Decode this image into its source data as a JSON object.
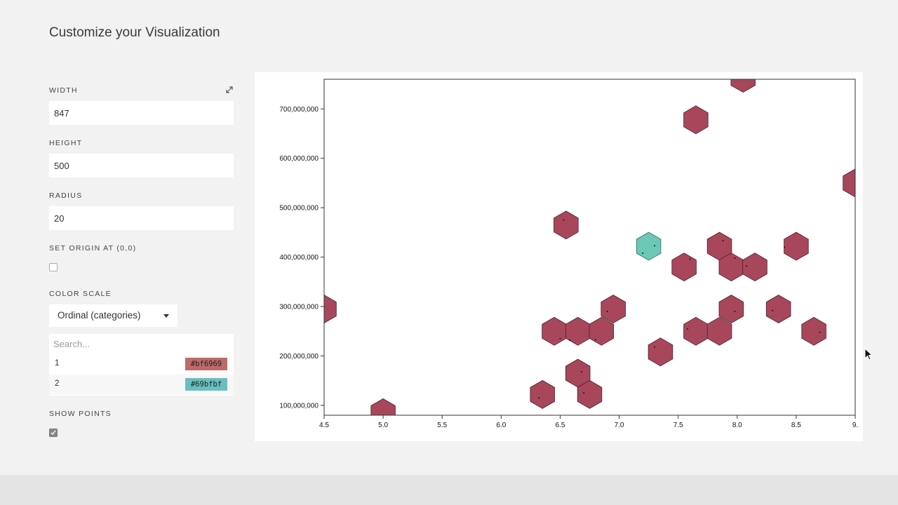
{
  "page": {
    "title": "Customize your Visualization"
  },
  "controls": {
    "width": {
      "label": "WIDTH",
      "value": "847"
    },
    "height": {
      "label": "HEIGHT",
      "value": "500"
    },
    "radius": {
      "label": "RADIUS",
      "value": "20"
    },
    "origin": {
      "label": "SET ORIGIN AT (0,0)",
      "checked": false
    },
    "color_scale": {
      "label": "COLOR SCALE",
      "selected": "Ordinal (categories)",
      "search_placeholder": "Search...",
      "entries": [
        {
          "label": "1",
          "color": "#bf6969"
        },
        {
          "label": "2",
          "color": "#69bfbf"
        }
      ]
    },
    "show_points": {
      "label": "SHOW POINTS",
      "checked": true
    }
  },
  "icons": {
    "expand": "expand-icon",
    "caret": "caret-down-icon",
    "check": "check-icon",
    "cursor": "mouse-cursor-icon"
  },
  "chart_data": {
    "type": "hexbin",
    "xlim": [
      4.5,
      9.0
    ],
    "ylim": [
      80000000,
      760000000
    ],
    "x_ticks": [
      "4.5",
      "5.0",
      "5.5",
      "6.0",
      "6.5",
      "7.0",
      "7.5",
      "8.0",
      "8.5",
      "9."
    ],
    "x_tick_values": [
      4.5,
      5.0,
      5.5,
      6.0,
      6.5,
      7.0,
      7.5,
      8.0,
      8.5,
      9.0
    ],
    "y_ticks": [
      "100,000,000",
      "200,000,000",
      "300,000,000",
      "400,000,000",
      "500,000,000",
      "600,000,000",
      "700,000,000"
    ],
    "y_tick_values": [
      100000000,
      200000000,
      300000000,
      400000000,
      500000000,
      600000000,
      700000000
    ],
    "bins": [
      {
        "x": 4.5,
        "y": 295000000,
        "category": "1"
      },
      {
        "x": 5.0,
        "y": 85000000,
        "category": "1"
      },
      {
        "x": 6.35,
        "y": 122000000,
        "category": "1"
      },
      {
        "x": 6.45,
        "y": 250000000,
        "category": "1"
      },
      {
        "x": 6.55,
        "y": 465000000,
        "category": "1"
      },
      {
        "x": 6.65,
        "y": 165000000,
        "category": "1"
      },
      {
        "x": 6.65,
        "y": 250000000,
        "category": "1"
      },
      {
        "x": 6.75,
        "y": 122000000,
        "category": "1"
      },
      {
        "x": 6.85,
        "y": 250000000,
        "category": "1"
      },
      {
        "x": 6.95,
        "y": 295000000,
        "category": "1"
      },
      {
        "x": 7.25,
        "y": 422000000,
        "category": "2"
      },
      {
        "x": 7.35,
        "y": 208000000,
        "category": "1"
      },
      {
        "x": 7.55,
        "y": 380000000,
        "category": "1"
      },
      {
        "x": 7.65,
        "y": 250000000,
        "category": "1"
      },
      {
        "x": 7.65,
        "y": 678000000,
        "category": "1"
      },
      {
        "x": 7.85,
        "y": 250000000,
        "category": "1"
      },
      {
        "x": 7.85,
        "y": 422000000,
        "category": "1"
      },
      {
        "x": 7.95,
        "y": 295000000,
        "category": "1"
      },
      {
        "x": 7.95,
        "y": 380000000,
        "category": "1"
      },
      {
        "x": 8.05,
        "y": 762000000,
        "category": "1"
      },
      {
        "x": 8.15,
        "y": 380000000,
        "category": "1"
      },
      {
        "x": 8.35,
        "y": 295000000,
        "category": "1"
      },
      {
        "x": 8.5,
        "y": 422000000,
        "category": "1"
      },
      {
        "x": 8.65,
        "y": 250000000,
        "category": "1"
      },
      {
        "x": 9.0,
        "y": 550000000,
        "category": "1"
      }
    ],
    "points": [
      [
        6.32,
        115000000
      ],
      [
        6.5,
        235000000
      ],
      [
        6.53,
        475000000
      ],
      [
        6.58,
        232000000
      ],
      [
        6.68,
        168000000
      ],
      [
        6.7,
        125000000
      ],
      [
        6.8,
        233000000
      ],
      [
        6.9,
        290000000
      ],
      [
        7.2,
        408000000
      ],
      [
        7.3,
        423000000
      ],
      [
        7.3,
        218000000
      ],
      [
        7.58,
        255000000
      ],
      [
        7.6,
        396000000
      ],
      [
        7.88,
        433000000
      ],
      [
        7.98,
        398000000
      ],
      [
        7.98,
        290000000
      ],
      [
        8.08,
        382000000
      ],
      [
        8.3,
        292000000
      ],
      [
        8.4,
        420000000
      ],
      [
        8.7,
        248000000
      ]
    ]
  }
}
